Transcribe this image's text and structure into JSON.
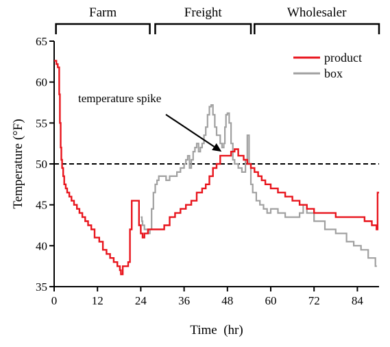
{
  "chart_data": {
    "type": "line",
    "xlabel": "Time  (hr)",
    "ylabel": "Temperature (°F)",
    "xlim": [
      0,
      90
    ],
    "ylim": [
      35,
      65
    ],
    "xticks": [
      0,
      12,
      24,
      36,
      48,
      60,
      72,
      84
    ],
    "yticks": [
      35,
      40,
      45,
      50,
      55,
      60,
      65
    ],
    "threshold": {
      "y": 50,
      "style": "dashed",
      "color": "#000000"
    },
    "legend_position": "top-right",
    "grid": false,
    "stages": [
      {
        "label": "Farm",
        "x_start": 0.5,
        "x_end": 26.5
      },
      {
        "label": "Freight",
        "x_start": 28,
        "x_end": 54.5
      },
      {
        "label": "Wholesaler",
        "x_start": 55.5,
        "x_end": 90
      }
    ],
    "annotation": {
      "text": "temperature spike",
      "x": 46,
      "y": 51
    },
    "series": [
      {
        "name": "product",
        "color": "#e8141c",
        "x": [
          0,
          0.6,
          0.6,
          1.0,
          1.0,
          1.4,
          1.6,
          1.8,
          2.0,
          2.2,
          2.5,
          2.8,
          3.2,
          3.6,
          4.2,
          4.8,
          5.5,
          6.3,
          7.0,
          7.8,
          8.6,
          9.4,
          10.3,
          11.2,
          12.5,
          13.5,
          14.5,
          15.5,
          16.5,
          17.5,
          18.0,
          18.2,
          18.5,
          19.0,
          20.0,
          20.5,
          21.0,
          21.5,
          22.0,
          22.3,
          23.0,
          23.5,
          24.0,
          24.5,
          25.0,
          26.0,
          27.0,
          28.0,
          29.0,
          30.5,
          32.0,
          33.5,
          35.0,
          36.5,
          38.0,
          39.5,
          41.0,
          42.0,
          43.0,
          44.0,
          45.0,
          46.0,
          47.0,
          48.0,
          49.0,
          50.0,
          51.0,
          52.5,
          53.5,
          54.5,
          55.5,
          56.5,
          57.5,
          58.5,
          60.0,
          62.0,
          64.0,
          66.0,
          68.0,
          70.0,
          72.0,
          75.0,
          78.0,
          81.0,
          84.0,
          86.0,
          88.0,
          89.3,
          89.6,
          90.0
        ],
        "y": [
          62.6,
          62.6,
          62.2,
          62.2,
          61.8,
          58.5,
          55.0,
          52.0,
          50.5,
          49.5,
          48.5,
          47.5,
          47.0,
          46.5,
          46.0,
          45.5,
          45.0,
          44.5,
          44.0,
          43.5,
          43.0,
          42.5,
          42.0,
          41.0,
          40.5,
          39.5,
          39.0,
          38.5,
          38.0,
          37.5,
          37.5,
          37.0,
          36.5,
          37.5,
          37.5,
          38.0,
          42.0,
          45.5,
          45.5,
          45.5,
          45.5,
          42.5,
          41.5,
          41.0,
          41.5,
          42.0,
          42.0,
          42.0,
          42.0,
          42.5,
          43.5,
          44.0,
          44.5,
          45.0,
          45.5,
          46.5,
          47.0,
          47.5,
          48.5,
          49.5,
          50.0,
          51.0,
          51.0,
          51.0,
          51.5,
          51.8,
          51.0,
          50.5,
          50.0,
          49.5,
          49.0,
          48.5,
          48.0,
          47.5,
          47.0,
          46.5,
          46.0,
          45.5,
          45.0,
          44.5,
          44.0,
          44.0,
          43.5,
          43.5,
          43.5,
          43.0,
          42.5,
          42.0,
          46.5,
          46.5
        ]
      },
      {
        "name": "box",
        "color": "#a0a0a0",
        "x": [
          24.0,
          24.3,
          24.5,
          25.0,
          25.5,
          26.0,
          26.5,
          27.0,
          27.5,
          28.0,
          28.5,
          29.0,
          30.0,
          31.0,
          32.0,
          33.0,
          34.0,
          35.0,
          36.0,
          36.5,
          37.0,
          37.5,
          38.0,
          38.5,
          39.0,
          39.5,
          40.0,
          40.5,
          41.0,
          41.5,
          42.0,
          42.5,
          43.0,
          43.5,
          44.0,
          44.5,
          45.0,
          46.0,
          46.5,
          47.0,
          47.3,
          47.6,
          48.0,
          48.5,
          49.0,
          49.5,
          50.0,
          51.0,
          52.0,
          53.0,
          53.5,
          54.0,
          54.5,
          55.0,
          56.0,
          57.0,
          58.0,
          59.0,
          60.0,
          62.0,
          64.0,
          66.0,
          68.0,
          69.0,
          70.0,
          72.0,
          75.0,
          78.0,
          81.0,
          83.0,
          85.0,
          87.0,
          89.0,
          89.4
        ],
        "y": [
          43.5,
          43.0,
          42.5,
          42.0,
          42.0,
          41.5,
          42.0,
          44.5,
          46.5,
          47.5,
          48.0,
          48.5,
          48.5,
          48.0,
          48.5,
          48.5,
          49.0,
          49.5,
          50.0,
          50.5,
          51.0,
          49.5,
          50.5,
          51.5,
          52.0,
          52.5,
          51.5,
          52.0,
          52.5,
          53.5,
          54.5,
          56.0,
          57.0,
          57.2,
          56.0,
          54.5,
          53.5,
          52.5,
          52.0,
          52.5,
          54.5,
          56.0,
          56.2,
          55.0,
          52.5,
          50.5,
          50.0,
          49.5,
          49.0,
          50.5,
          53.5,
          50.0,
          47.5,
          46.5,
          45.5,
          45.0,
          44.5,
          44.0,
          44.5,
          44.0,
          43.5,
          43.5,
          44.0,
          45.0,
          44.0,
          43.0,
          42.0,
          41.5,
          40.5,
          40.0,
          39.5,
          38.5,
          37.5,
          37.5
        ]
      }
    ]
  }
}
